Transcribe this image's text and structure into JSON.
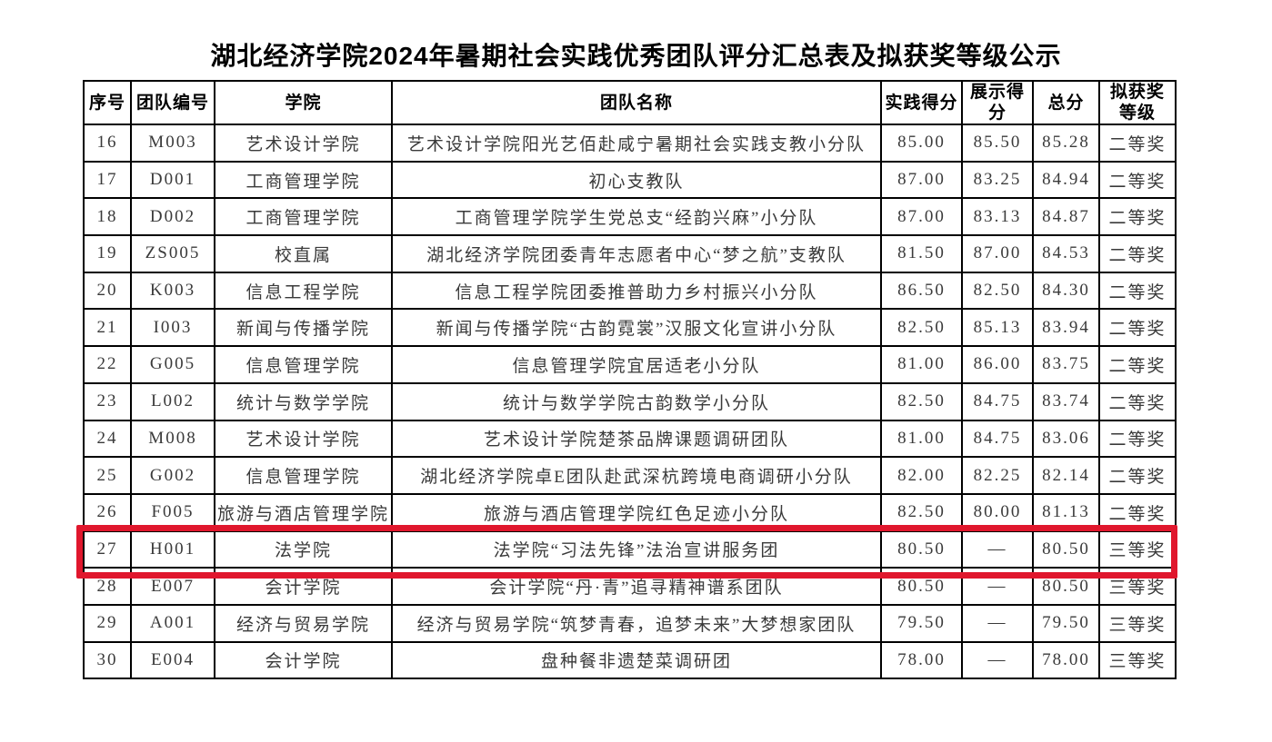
{
  "title": "湖北经济学院2024年暑期社会实践优秀团队评分汇总表及拟获奖等级公示",
  "highlight_color": "#e0172d",
  "highlighted_seq": "27",
  "table": {
    "columns": [
      "序号",
      "团队编号",
      "学院",
      "团队名称",
      "实践得分",
      "展示得分",
      "总分",
      "拟获奖\n等级"
    ],
    "rows": [
      {
        "seq": "16",
        "team_code": "M003",
        "college": "艺术设计学院",
        "team_name": "艺术设计学院阳光艺佰赴咸宁暑期社会实践支教小分队",
        "practice_score": "85.00",
        "presentation_score": "85.50",
        "total_score": "85.28",
        "award": "二等奖"
      },
      {
        "seq": "17",
        "team_code": "D001",
        "college": "工商管理学院",
        "team_name": "初心支教队",
        "practice_score": "87.00",
        "presentation_score": "83.25",
        "total_score": "84.94",
        "award": "二等奖"
      },
      {
        "seq": "18",
        "team_code": "D002",
        "college": "工商管理学院",
        "team_name": "工商管理学院学生党总支“经韵兴麻”小分队",
        "practice_score": "87.00",
        "presentation_score": "83.13",
        "total_score": "84.87",
        "award": "二等奖"
      },
      {
        "seq": "19",
        "team_code": "ZS005",
        "college": "校直属",
        "team_name": "湖北经济学院团委青年志愿者中心“梦之航”支教队",
        "practice_score": "81.50",
        "presentation_score": "87.00",
        "total_score": "84.53",
        "award": "二等奖"
      },
      {
        "seq": "20",
        "team_code": "K003",
        "college": "信息工程学院",
        "team_name": "信息工程学院团委推普助力乡村振兴小分队",
        "practice_score": "86.50",
        "presentation_score": "82.50",
        "total_score": "84.30",
        "award": "二等奖"
      },
      {
        "seq": "21",
        "team_code": "I003",
        "college": "新闻与传播学院",
        "team_name": "新闻与传播学院“古韵霓裳”汉服文化宣讲小分队",
        "practice_score": "82.50",
        "presentation_score": "85.13",
        "total_score": "83.94",
        "award": "二等奖"
      },
      {
        "seq": "22",
        "team_code": "G005",
        "college": "信息管理学院",
        "team_name": "信息管理学院宜居适老小分队",
        "practice_score": "81.00",
        "presentation_score": "86.00",
        "total_score": "83.75",
        "award": "二等奖"
      },
      {
        "seq": "23",
        "team_code": "L002",
        "college": "统计与数学学院",
        "team_name": "统计与数学学院古韵数学小分队",
        "practice_score": "82.50",
        "presentation_score": "84.75",
        "total_score": "83.74",
        "award": "二等奖"
      },
      {
        "seq": "24",
        "team_code": "M008",
        "college": "艺术设计学院",
        "team_name": "艺术设计学院楚茶品牌课题调研团队",
        "practice_score": "81.00",
        "presentation_score": "84.75",
        "total_score": "83.06",
        "award": "二等奖"
      },
      {
        "seq": "25",
        "team_code": "G002",
        "college": "信息管理学院",
        "team_name": "湖北经济学院卓E团队赴武深杭跨境电商调研小分队",
        "practice_score": "82.00",
        "presentation_score": "82.25",
        "total_score": "82.14",
        "award": "二等奖"
      },
      {
        "seq": "26",
        "team_code": "F005",
        "college": "旅游与酒店管理学院",
        "team_name": "旅游与酒店管理学院红色足迹小分队",
        "practice_score": "82.50",
        "presentation_score": "80.00",
        "total_score": "81.13",
        "award": "二等奖"
      },
      {
        "seq": "27",
        "team_code": "H001",
        "college": "法学院",
        "team_name": "法学院“习法先锋”法治宣讲服务团",
        "practice_score": "80.50",
        "presentation_score": "—",
        "total_score": "80.50",
        "award": "三等奖"
      },
      {
        "seq": "28",
        "team_code": "E007",
        "college": "会计学院",
        "team_name": "会计学院“丹·青”追寻精神谱系团队",
        "practice_score": "80.50",
        "presentation_score": "—",
        "total_score": "80.50",
        "award": "三等奖"
      },
      {
        "seq": "29",
        "team_code": "A001",
        "college": "经济与贸易学院",
        "team_name": "经济与贸易学院“筑梦青春，追梦未来”大梦想家团队",
        "practice_score": "79.50",
        "presentation_score": "—",
        "total_score": "79.50",
        "award": "三等奖"
      },
      {
        "seq": "30",
        "team_code": "E004",
        "college": "会计学院",
        "team_name": "盘种餐非遗楚菜调研团",
        "practice_score": "78.00",
        "presentation_score": "—",
        "total_score": "78.00",
        "award": "三等奖"
      }
    ]
  }
}
